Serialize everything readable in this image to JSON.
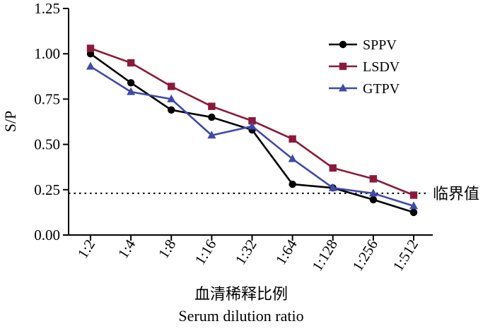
{
  "chart_data": {
    "type": "line",
    "title": "",
    "xlabel_cn": "血清稀释比例",
    "xlabel_en": "Serum dilution ratio",
    "ylabel": "S/P",
    "categories": [
      "1:2",
      "1:4",
      "1:8",
      "1:16",
      "1:32",
      "1:64",
      "1:128",
      "1:256",
      "1:512"
    ],
    "yticks": [
      "0.00",
      "0.25",
      "0.50",
      "0.75",
      "1.00",
      "1.25"
    ],
    "ylim": [
      0,
      1.25
    ],
    "grid": false,
    "legend_position": "top-right",
    "series": [
      {
        "name": "SPPV",
        "marker": "circle",
        "color": "#000000",
        "values": [
          1.0,
          0.84,
          0.69,
          0.65,
          0.58,
          0.28,
          0.26,
          0.195,
          0.125
        ]
      },
      {
        "name": "LSDV",
        "marker": "square",
        "color": "#8b1a3a",
        "values": [
          1.03,
          0.95,
          0.82,
          0.71,
          0.63,
          0.53,
          0.37,
          0.31,
          0.22
        ]
      },
      {
        "name": "GTPV",
        "marker": "triangle",
        "color": "#3f4aa8",
        "values": [
          0.93,
          0.79,
          0.75,
          0.55,
          0.6,
          0.42,
          0.26,
          0.23,
          0.16
        ]
      }
    ],
    "threshold": {
      "value": 0.23,
      "label": "临界值"
    }
  }
}
